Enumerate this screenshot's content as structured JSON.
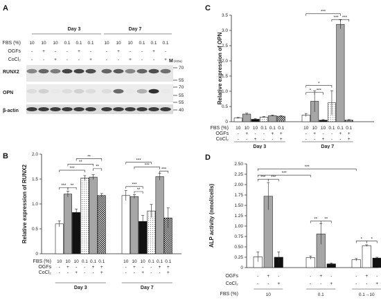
{
  "panels": {
    "A": {
      "letter": "A",
      "rows_header": {
        "fbs": "FBS (%)",
        "ogfs": "OGFs",
        "cocl2": "CoCl₂"
      },
      "groups": [
        "Day 3",
        "Day 7"
      ],
      "fbs_values": [
        "10",
        "10",
        "10",
        "0.1",
        "0.1",
        "0.1",
        "10",
        "10",
        "10",
        "0.1",
        "0.1",
        "0.1"
      ],
      "ogfs_values": [
        "-",
        "+",
        "-",
        "-",
        "+",
        "-",
        "-",
        "+",
        "-",
        "-",
        "+",
        "-"
      ],
      "cocl2_values": [
        "-",
        "-",
        "+",
        "-",
        "-",
        "+",
        "-",
        "-",
        "+",
        "-",
        "-",
        "+"
      ],
      "bands": [
        "RUNX2",
        "OPN",
        "β-actin"
      ],
      "marker_header": "M",
      "marker_unit": "(KDa)",
      "markers": [
        "70",
        "55",
        "70",
        "55",
        "55",
        "40"
      ]
    },
    "B": {
      "letter": "B",
      "row_labels": {
        "fbs": "FBS (%)",
        "ogfs": "OGFs",
        "cocl2": "CoCl₂"
      },
      "fbs_values": [
        "10",
        "10",
        "10",
        "0.1",
        "0.1",
        "0.1"
      ],
      "ogfs_values": [
        "-",
        "+",
        "-",
        "-",
        "+",
        "+"
      ],
      "cocl2_values": [
        "-",
        "-",
        "+",
        "-",
        "-",
        "+"
      ],
      "groups": [
        "Day 3",
        "Day 7"
      ],
      "sig_labels": [
        "***",
        "**",
        "***",
        "**",
        "**",
        "**",
        "***",
        "**",
        "***",
        "***",
        "***"
      ]
    },
    "C": {
      "letter": "C",
      "row_labels": {
        "fbs": "FBS (%)",
        "ogfs": "OGFs",
        "cocl2": "CoCl₂"
      },
      "fbs_values": [
        "10",
        "10",
        "10",
        "0.1",
        "0.1",
        "0.1"
      ],
      "ogfs_values": [
        "-",
        "+",
        "-",
        "-",
        "+",
        "+"
      ],
      "cocl2_values": [
        "-",
        "-",
        "+",
        "-",
        "-",
        "+"
      ],
      "groups": [
        "Day 3",
        "Day 7"
      ],
      "sig_labels": [
        "***",
        "***",
        "***",
        "*",
        "*",
        "***"
      ]
    },
    "D": {
      "letter": "D",
      "row_labels": {
        "ogfs": "OGFs",
        "cocl2": "CoCl₂",
        "fbs": "FBS (%)"
      },
      "ogfs_values": [
        "-",
        "+",
        "-"
      ],
      "cocl2_values": [
        "-",
        "-",
        "+"
      ],
      "groups": [
        "10",
        "0.1",
        "0.1→10"
      ],
      "sig_labels": [
        "***",
        "***",
        "***",
        "***",
        "**",
        "**",
        "*",
        "*"
      ]
    }
  },
  "chart_data": [
    {
      "id": "B",
      "type": "bar",
      "title": "",
      "ylabel": "Relative expression of RUNX2",
      "xlabel": "",
      "ylim": [
        0,
        2.0
      ],
      "yticks": [
        "0",
        "0.5",
        "1.0",
        "1.5",
        "2.0"
      ],
      "grid": false,
      "groups": [
        "Day 3",
        "Day 7"
      ],
      "categories": [
        "10/-/-",
        "10/+/-",
        "10/-/+",
        "0.1/-/-",
        "0.1/+/-",
        "0.1/+/+"
      ],
      "values": [
        [
          0.6,
          1.2,
          0.83,
          1.52,
          1.54,
          1.17
        ],
        [
          1.17,
          1.15,
          0.65,
          0.86,
          1.55,
          0.72
        ]
      ],
      "errors": [
        [
          0.06,
          0.06,
          0.07,
          0.05,
          0.05,
          0.04
        ],
        [
          0.1,
          0.04,
          0.12,
          0.13,
          0.07,
          0.2
        ]
      ],
      "fills": [
        "#ffffff",
        "#a6a6a6",
        "#111111",
        "dots",
        "#a6a6a6",
        "checker"
      ]
    },
    {
      "id": "C",
      "type": "bar",
      "title": "",
      "ylabel": "Relative expression of OPN",
      "xlabel": "",
      "ylim": [
        0,
        3.5
      ],
      "yticks": [
        "0",
        "0.5",
        "1.0",
        "1.5",
        "2.0",
        "2.5",
        "3.0",
        "3.5"
      ],
      "grid": false,
      "groups": [
        "Day 3",
        "Day 7"
      ],
      "categories": [
        "10/-/-",
        "10/+/-",
        "10/-/+",
        "0.1/-/-",
        "0.1/+/-",
        "0.1/+/+"
      ],
      "values": [
        [
          0.12,
          0.25,
          0.08,
          0.15,
          0.2,
          0.18
        ],
        [
          0.22,
          0.67,
          0.05,
          0.62,
          3.2,
          0.05
        ]
      ],
      "errors": [
        [
          0.02,
          0.03,
          0.02,
          0.02,
          0.02,
          0.02
        ],
        [
          0.05,
          0.35,
          0.02,
          0.4,
          0.15,
          0.02
        ]
      ],
      "fills": [
        "#ffffff",
        "#a6a6a6",
        "#111111",
        "dots",
        "#a6a6a6",
        "checker"
      ]
    },
    {
      "id": "D",
      "type": "bar",
      "title": "",
      "ylabel": "ALP activity (nmol/cells)",
      "xlabel": "",
      "ylim": [
        0,
        2.5
      ],
      "yticks": [
        "0",
        "0.25",
        "0.50",
        "0.75",
        "1.00",
        "1.25",
        "1.50",
        "1.75",
        "2.00",
        "2.25",
        "2.50"
      ],
      "grid": false,
      "groups": [
        "10",
        "0.1",
        "0.1→10"
      ],
      "categories": [
        "-/-",
        "+/-",
        "-/+"
      ],
      "values": [
        [
          0.26,
          1.72,
          0.25
        ],
        [
          0.24,
          0.81,
          0.09
        ],
        [
          0.19,
          0.53,
          0.23
        ]
      ],
      "errors": [
        [
          0.12,
          0.33,
          0.13
        ],
        [
          0.04,
          0.25,
          0.02
        ],
        [
          0.03,
          0.02,
          0.02
        ]
      ],
      "fills": [
        [
          "#ffffff",
          "#ffffff",
          "#ffffff"
        ],
        [
          "#a6a6a6",
          "#a6a6a6",
          "#ffffff"
        ],
        [
          "#111111",
          "#111111",
          "#111111"
        ]
      ]
    }
  ]
}
